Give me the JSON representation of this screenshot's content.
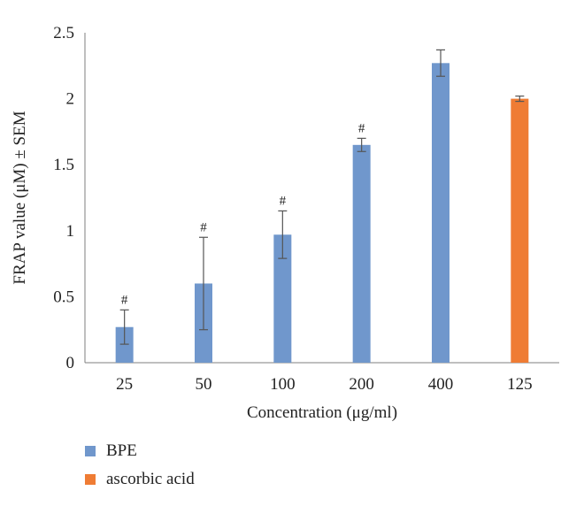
{
  "chart_data": {
    "type": "bar",
    "categories": [
      "25",
      "50",
      "100",
      "200",
      "400",
      "125"
    ],
    "series": [
      {
        "name": "BPE",
        "color": "#7097cc",
        "values": [
          0.27,
          0.6,
          0.97,
          1.65,
          2.27,
          null
        ],
        "errors": [
          0.13,
          0.35,
          0.18,
          0.05,
          0.1,
          null
        ]
      },
      {
        "name": "ascorbic acid",
        "color": "#ef7c34",
        "values": [
          null,
          null,
          null,
          null,
          null,
          2.0
        ],
        "errors": [
          null,
          null,
          null,
          null,
          null,
          0.02
        ]
      }
    ],
    "annotations": [
      "#",
      "#",
      "#",
      "#",
      "",
      ""
    ],
    "xlabel": "Concentration (μg/ml)",
    "ylabel": "FRAP value (μM) ± SEM",
    "ylim": [
      0,
      2.5
    ],
    "yticks": [
      "0",
      "0.5",
      "1",
      "1.5",
      "2",
      "2.5"
    ],
    "grid": false,
    "legend_position": "bottom-left"
  }
}
